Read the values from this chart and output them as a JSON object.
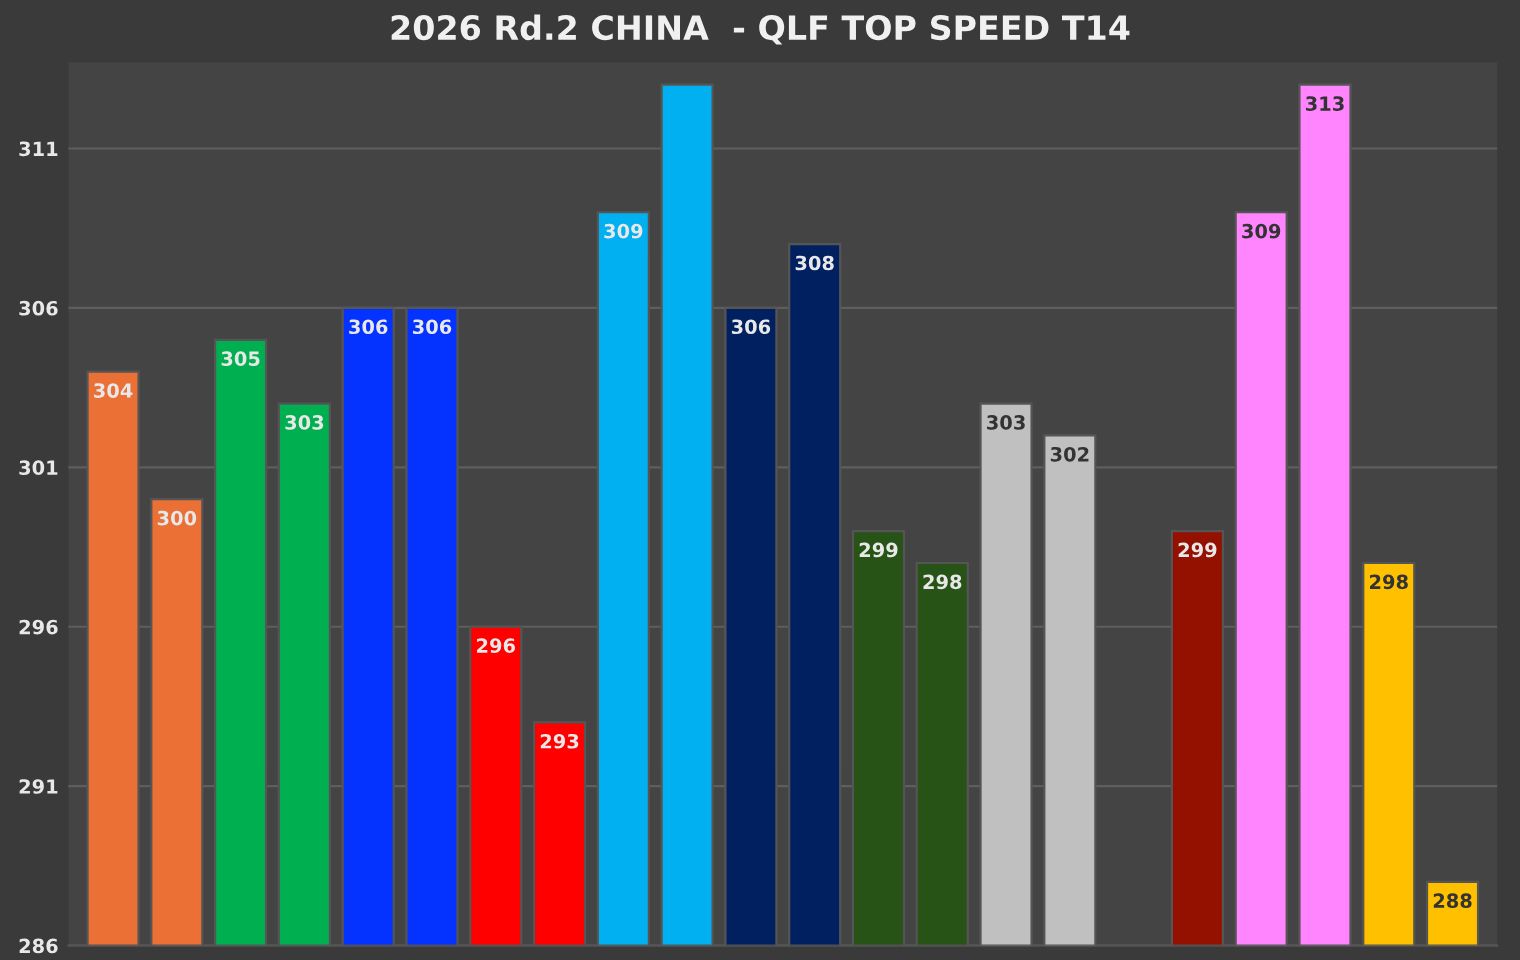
{
  "chart_data": {
    "type": "bar",
    "title": "2026 Rd.2 CHINA  - QLF TOP SPEED T14",
    "categories": [
      null,
      null,
      null,
      null,
      null,
      null,
      null,
      null,
      null,
      null,
      null,
      null,
      null,
      null,
      null,
      null,
      null,
      null,
      null,
      null,
      null,
      null
    ],
    "values": [
      304,
      300,
      305,
      303,
      306,
      306,
      296,
      293,
      309,
      313,
      306,
      308,
      299,
      298,
      303,
      302,
      null,
      299,
      309,
      313,
      298,
      288
    ],
    "value_labels": [
      "304",
      "300",
      "305",
      "303",
      "306",
      "306",
      "296",
      "293",
      "309",
      null,
      "306",
      "308",
      "299",
      "298",
      "303",
      "302",
      null,
      "299",
      "309",
      "313",
      "298",
      "288"
    ],
    "colors": [
      "#ea7035",
      "#ea7035",
      "#00b050",
      "#00b050",
      "#0432ff",
      "#0432ff",
      "#ff0000",
      "#ff0000",
      "#00b0f0",
      "#00b0f0",
      "#002060",
      "#002060",
      "#275317",
      "#275317",
      "#c0c0c0",
      "#c0c0c0",
      "#941100",
      "#941100",
      "#ff85ff",
      "#ff85ff",
      "#ffc000",
      "#ffc000"
    ],
    "ylim": [
      286,
      313.7
    ],
    "yticks": [
      286,
      291,
      296,
      301,
      306,
      311
    ],
    "grid": "y"
  }
}
